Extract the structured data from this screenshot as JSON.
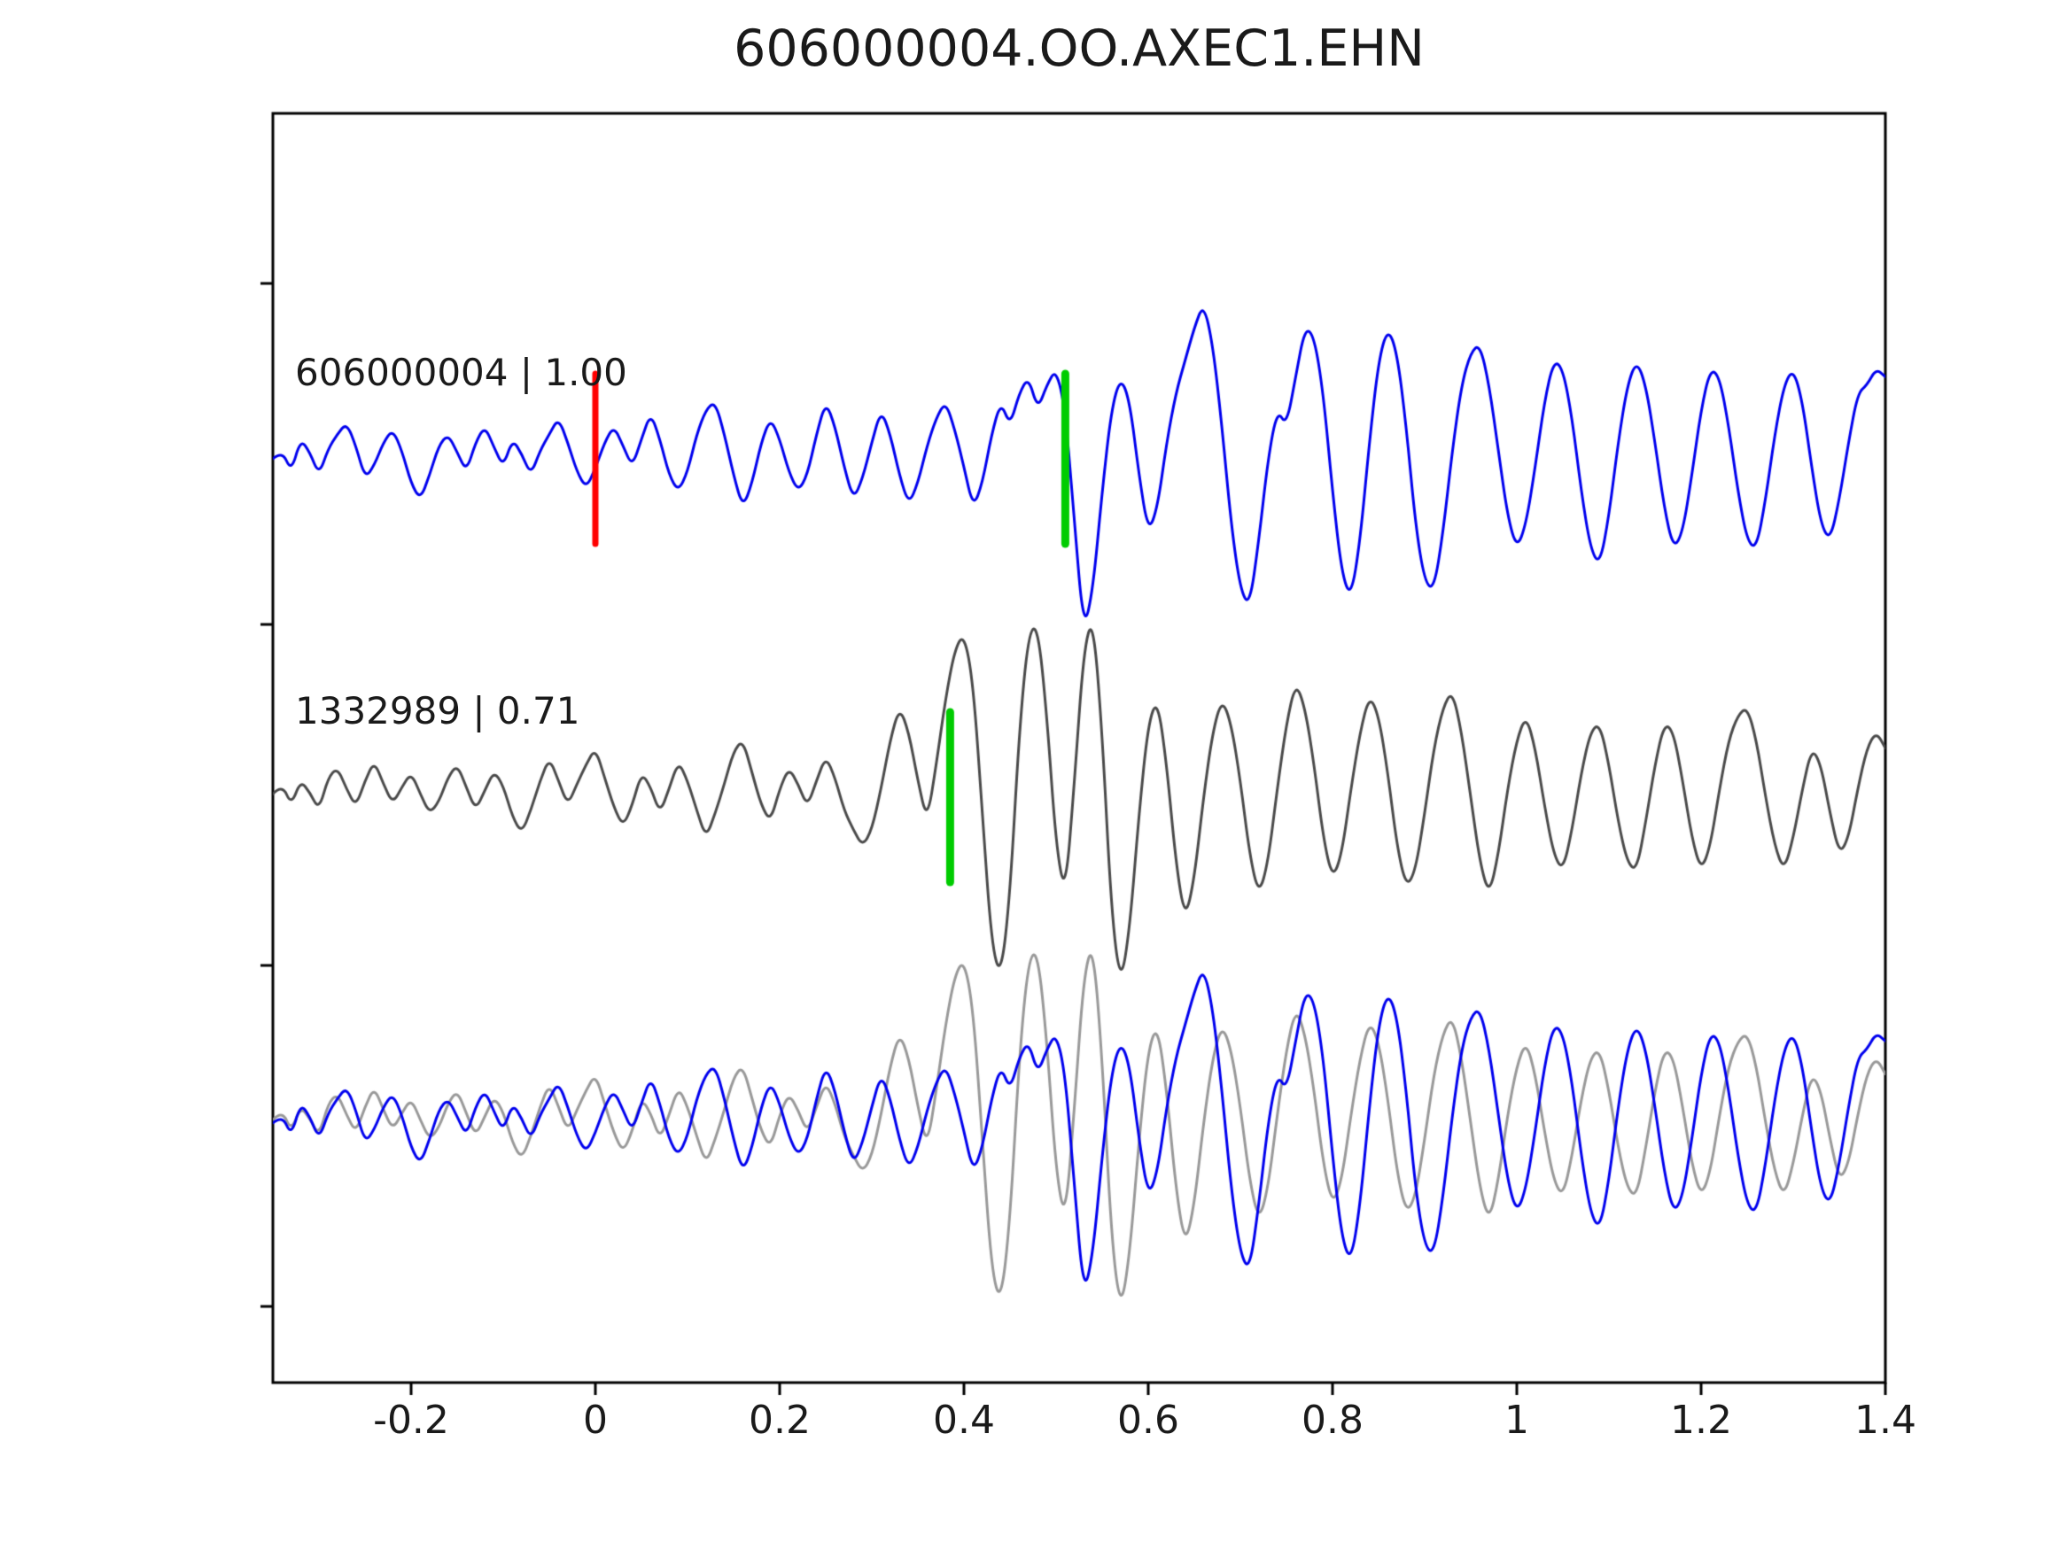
{
  "title": "606000004.OO.AXEC1.EHN",
  "colors": {
    "background": "#ffffff",
    "axis": "#000000",
    "trace_blue": "#0000ee",
    "trace_gray_dark": "#4a4a4a",
    "trace_gray_light": "#999999",
    "marker_red": "#ff0000",
    "marker_green": "#00cc00"
  },
  "chart_data": {
    "type": "line",
    "title": "606000004.OO.AXEC1.EHN",
    "xlabel": "",
    "ylabel": "",
    "grid": false,
    "legend": "none",
    "xlim": [
      -0.35,
      1.4
    ],
    "x_ticks": [
      -0.2,
      0,
      0.2,
      0.4,
      0.6,
      0.8,
      1,
      1.2,
      1.4
    ],
    "x_tick_labels": [
      "-0.2",
      "0",
      "0.2",
      "0.4",
      "0.6",
      "0.8",
      "1",
      "1.2",
      "1.4"
    ],
    "sample_dx": 0.01,
    "x_start": -0.35,
    "rows": [
      {
        "name": "trace-606000004",
        "label": "606000004 | 1.00",
        "series": [
          {
            "key": "blue",
            "color": "#0000ee"
          }
        ],
        "markers": [
          {
            "x": 0.0,
            "color": "red"
          },
          {
            "x": 0.51,
            "color": "green"
          }
        ]
      },
      {
        "name": "trace-1332989",
        "label": "1332989 | 0.71",
        "series": [
          {
            "key": "gray",
            "color": "#4a4a4a"
          }
        ],
        "markers": [
          {
            "x": 0.385,
            "color": "green"
          }
        ]
      },
      {
        "name": "overlay-aligned-traces",
        "label": "",
        "series": [
          {
            "key": "gray",
            "color": "#999999"
          },
          {
            "key": "blue",
            "color": "#0000ee"
          }
        ],
        "markers": []
      }
    ],
    "series": {
      "blue": {
        "name": "606000004 waveform",
        "values": [
          0.0,
          0.05,
          -0.08,
          0.12,
          0.04,
          -0.1,
          0.06,
          0.15,
          0.22,
          0.08,
          -0.12,
          -0.04,
          0.1,
          0.18,
          0.05,
          -0.15,
          -0.25,
          -0.1,
          0.08,
          0.15,
          0.04,
          -0.08,
          0.1,
          0.2,
          0.07,
          -0.05,
          0.12,
          0.03,
          -0.1,
          0.05,
          0.15,
          0.25,
          0.1,
          -0.08,
          -0.18,
          -0.06,
          0.1,
          0.2,
          0.08,
          -0.05,
          0.12,
          0.28,
          0.12,
          -0.1,
          -0.2,
          -0.08,
          0.15,
          0.3,
          0.35,
          0.15,
          -0.1,
          -0.3,
          -0.15,
          0.1,
          0.25,
          0.12,
          -0.08,
          -0.2,
          -0.1,
          0.15,
          0.35,
          0.2,
          -0.05,
          -0.25,
          -0.12,
          0.1,
          0.3,
          0.15,
          -0.1,
          -0.28,
          -0.15,
          0.08,
          0.25,
          0.35,
          0.18,
          -0.05,
          -0.3,
          -0.15,
          0.15,
          0.35,
          0.2,
          0.4,
          0.5,
          0.3,
          0.45,
          0.55,
          0.3,
          -0.4,
          -1.05,
          -0.8,
          -0.2,
          0.3,
          0.5,
          0.35,
          -0.1,
          -0.45,
          -0.3,
          0.1,
          0.4,
          0.6,
          0.8,
          0.95,
          0.7,
          0.2,
          -0.4,
          -0.8,
          -0.9,
          -0.5,
          0.0,
          0.3,
          0.2,
          0.5,
          0.8,
          0.75,
          0.4,
          -0.2,
          -0.7,
          -0.85,
          -0.5,
          0.1,
          0.6,
          0.8,
          0.65,
          0.2,
          -0.4,
          -0.75,
          -0.8,
          -0.45,
          0.05,
          0.45,
          0.65,
          0.7,
          0.45,
          0.05,
          -0.35,
          -0.55,
          -0.4,
          -0.05,
          0.35,
          0.6,
          0.55,
          0.25,
          -0.2,
          -0.55,
          -0.65,
          -0.35,
          0.1,
          0.45,
          0.6,
          0.45,
          0.1,
          -0.3,
          -0.55,
          -0.45,
          -0.1,
          0.3,
          0.55,
          0.5,
          0.2,
          -0.2,
          -0.5,
          -0.55,
          -0.25,
          0.15,
          0.45,
          0.55,
          0.35,
          -0.05,
          -0.4,
          -0.5,
          -0.25,
          0.1,
          0.4,
          0.45,
          0.55,
          0.5
        ]
      },
      "gray": {
        "name": "1332989 waveform",
        "values": [
          0.02,
          0.08,
          -0.05,
          0.1,
          0.03,
          -0.08,
          0.12,
          0.18,
          0.05,
          -0.06,
          0.1,
          0.22,
          0.08,
          -0.04,
          0.06,
          0.15,
          0.02,
          -0.1,
          -0.03,
          0.12,
          0.2,
          0.06,
          -0.08,
          0.04,
          0.16,
          0.07,
          -0.12,
          -0.22,
          -0.08,
          0.1,
          0.24,
          0.1,
          -0.05,
          0.08,
          0.2,
          0.3,
          0.12,
          -0.06,
          -0.18,
          -0.05,
          0.15,
          0.06,
          -0.1,
          0.05,
          0.22,
          0.1,
          -0.08,
          -0.25,
          -0.1,
          0.08,
          0.28,
          0.35,
          0.15,
          -0.05,
          -0.15,
          0.05,
          0.18,
          0.08,
          -0.06,
          0.1,
          0.25,
          0.12,
          -0.08,
          -0.2,
          -0.3,
          -0.2,
          0.05,
          0.35,
          0.55,
          0.4,
          0.1,
          -0.15,
          0.2,
          0.6,
          0.9,
          1.0,
          0.7,
          -0.1,
          -0.9,
          -1.1,
          -0.6,
          0.4,
          1.0,
          1.05,
          0.5,
          -0.3,
          -0.6,
          0.1,
          0.9,
          1.1,
          0.4,
          -0.7,
          -1.15,
          -0.8,
          -0.1,
          0.45,
          0.6,
          0.2,
          -0.4,
          -0.75,
          -0.5,
          0.0,
          0.4,
          0.6,
          0.45,
          0.1,
          -0.35,
          -0.6,
          -0.4,
          0.05,
          0.45,
          0.7,
          0.55,
          0.2,
          -0.25,
          -0.5,
          -0.35,
          0.05,
          0.4,
          0.62,
          0.5,
          0.15,
          -0.3,
          -0.55,
          -0.45,
          -0.1,
          0.3,
          0.55,
          0.65,
          0.4,
          0.0,
          -0.4,
          -0.6,
          -0.35,
          0.05,
          0.35,
          0.5,
          0.3,
          -0.05,
          -0.35,
          -0.45,
          -0.2,
          0.15,
          0.4,
          0.45,
          0.2,
          -0.15,
          -0.4,
          -0.45,
          -0.15,
          0.2,
          0.45,
          0.4,
          0.1,
          -0.25,
          -0.45,
          -0.3,
          0.05,
          0.35,
          0.5,
          0.55,
          0.35,
          0.0,
          -0.3,
          -0.45,
          -0.25,
          0.05,
          0.3,
          0.2,
          -0.1,
          -0.35,
          -0.25,
          0.05,
          0.3,
          0.4,
          0.3
        ]
      }
    }
  }
}
